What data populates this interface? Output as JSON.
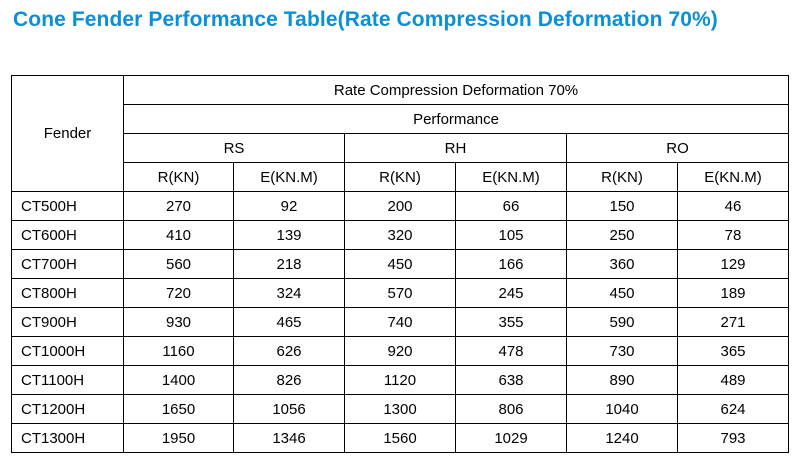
{
  "page": {
    "title": "Cone Fender Performance Table(Rate Compression Deformation 70%)"
  },
  "table": {
    "fender_header": "Fender",
    "deformation_header": "Rate Compression Deformation 70%",
    "performance_header": "Performance",
    "groups": [
      "RS",
      "RH",
      "RO"
    ],
    "sub_headers": [
      "R(KN)",
      "E(KN.M)",
      "R(KN)",
      "E(KN.M)",
      "R(KN)",
      "E(KN.M)"
    ],
    "rows": [
      {
        "model": "CT500H",
        "values": [
          "270",
          "92",
          "200",
          "66",
          "150",
          "46"
        ]
      },
      {
        "model": "CT600H",
        "values": [
          "410",
          "139",
          "320",
          "105",
          "250",
          "78"
        ]
      },
      {
        "model": "CT700H",
        "values": [
          "560",
          "218",
          "450",
          "166",
          "360",
          "129"
        ]
      },
      {
        "model": "CT800H",
        "values": [
          "720",
          "324",
          "570",
          "245",
          "450",
          "189"
        ]
      },
      {
        "model": "CT900H",
        "values": [
          "930",
          "465",
          "740",
          "355",
          "590",
          "271"
        ]
      },
      {
        "model": "CT1000H",
        "values": [
          "1160",
          "626",
          "920",
          "478",
          "730",
          "365"
        ]
      },
      {
        "model": "CT1100H",
        "values": [
          "1400",
          "826",
          "1120",
          "638",
          "890",
          "489"
        ]
      },
      {
        "model": "CT1200H",
        "values": [
          "1650",
          "1056",
          "1300",
          "806",
          "1040",
          "624"
        ]
      },
      {
        "model": "CT1300H",
        "values": [
          "1950",
          "1346",
          "1560",
          "1029",
          "1240",
          "793"
        ]
      }
    ]
  }
}
